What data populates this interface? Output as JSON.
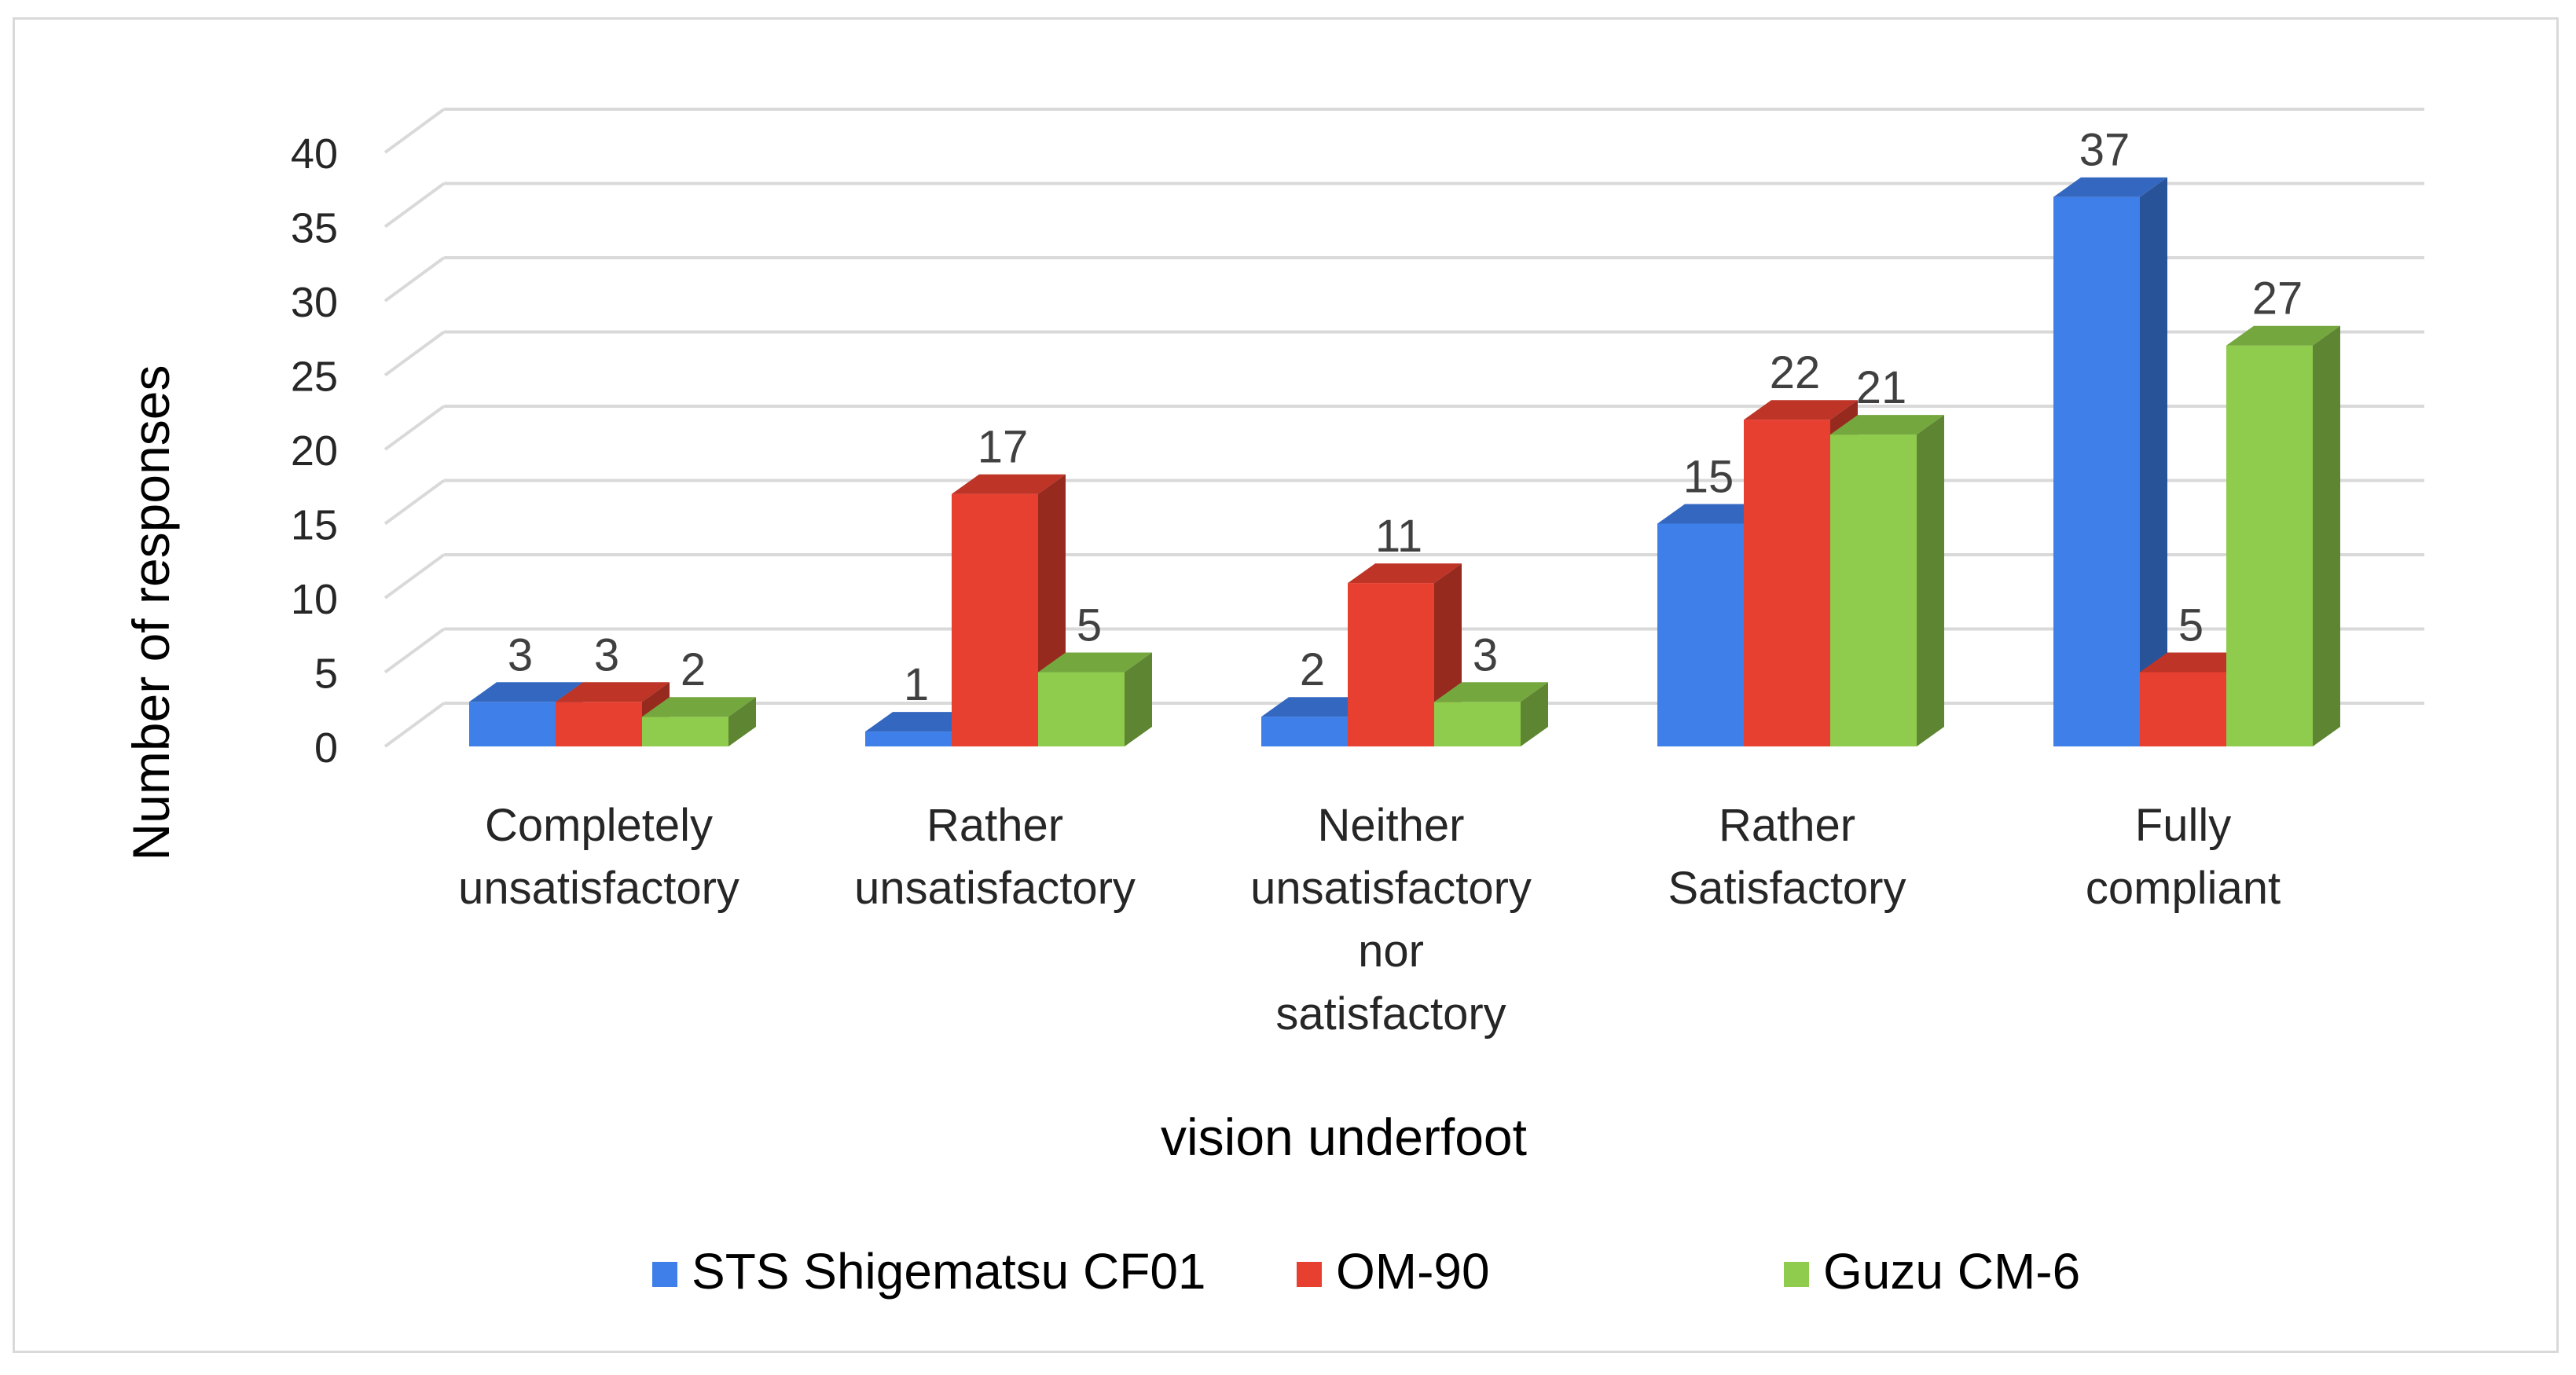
{
  "chart_data": {
    "type": "bar",
    "style": "3d-clustered-column",
    "title": "",
    "xlabel": "vision underfoot",
    "ylabel": "Number  of responses",
    "ylim": [
      0,
      40
    ],
    "yticks": [
      0,
      5,
      10,
      15,
      20,
      25,
      30,
      35,
      40
    ],
    "grid": true,
    "legend_position": "bottom",
    "categories": [
      [
        "Completely",
        "unsatisfactory"
      ],
      [
        "Rather",
        "unsatisfactory"
      ],
      [
        "Neither",
        "unsatisfactory",
        "nor",
        "satisfactory"
      ],
      [
        "Rather",
        "Satisfactory"
      ],
      [
        "Fully",
        "compliant"
      ]
    ],
    "series": [
      {
        "name": "STS Shigematsu CF01",
        "color": "#3f7fea",
        "values": [
          3,
          1,
          2,
          15,
          37
        ]
      },
      {
        "name": "OM-90",
        "color": "#e84030",
        "values": [
          3,
          17,
          11,
          22,
          5
        ]
      },
      {
        "name": "Guzu CM-6",
        "color": "#8fcc4d",
        "values": [
          2,
          5,
          3,
          21,
          27
        ]
      }
    ]
  }
}
